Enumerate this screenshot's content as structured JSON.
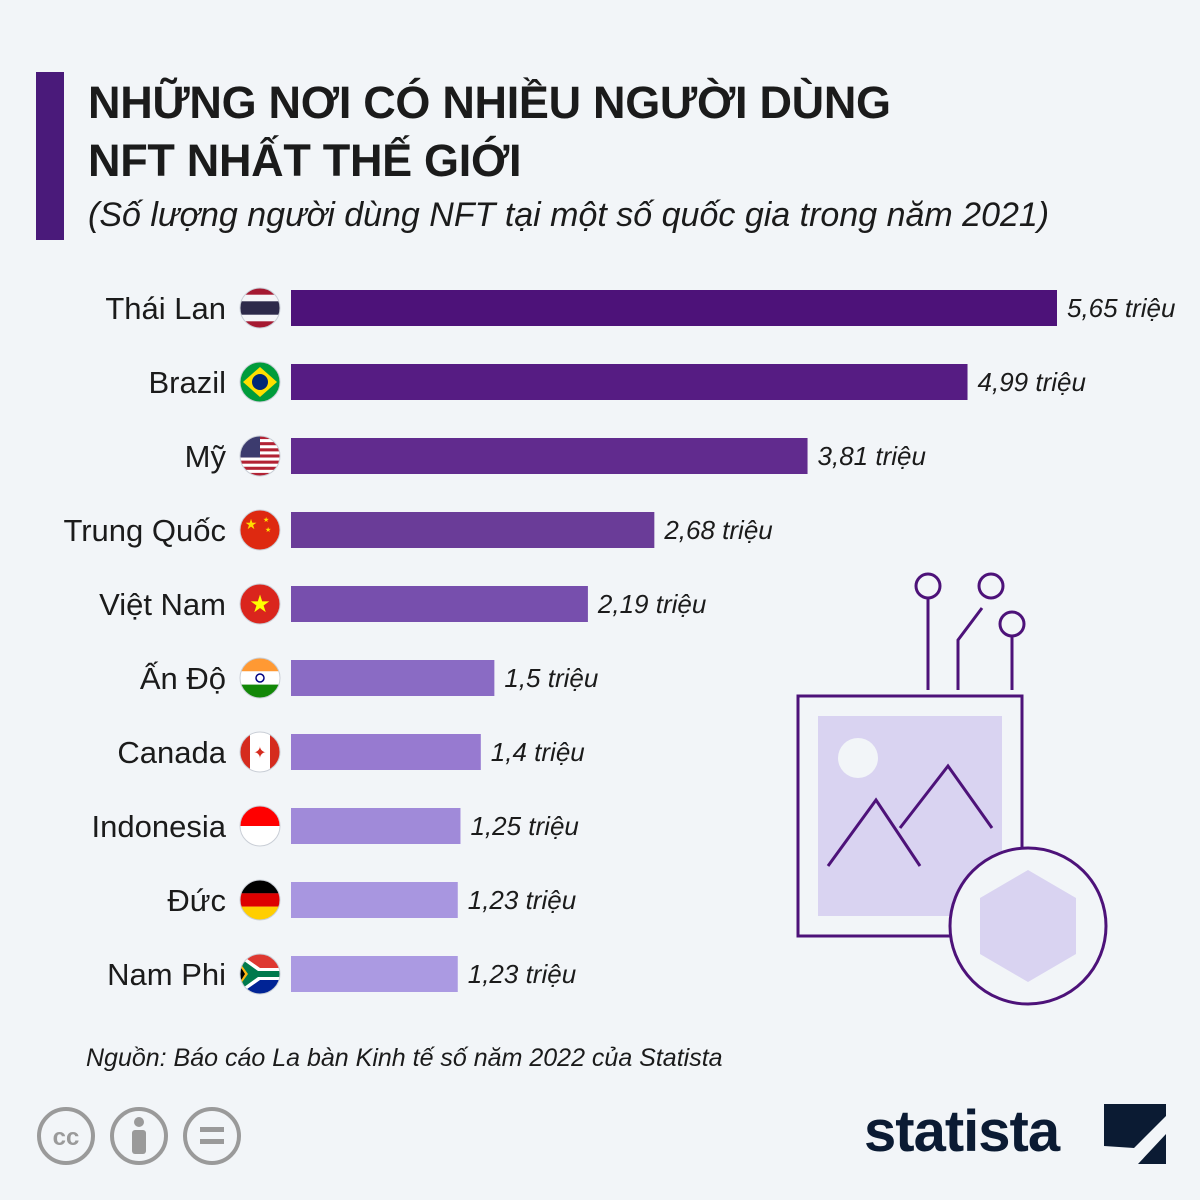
{
  "header": {
    "title_line1": "NHỮNG NƠI CÓ NHIỀU NGƯỜI DÙNG",
    "title_line2": "NFT NHẤT THẾ GIỚI",
    "subtitle": "(Số lượng người dùng NFT tại một số quốc gia trong năm 2021)"
  },
  "chart_data": {
    "type": "bar",
    "orientation": "horizontal",
    "categories": [
      "Thái Lan",
      "Brazil",
      "Mỹ",
      "Trung Quốc",
      "Việt Nam",
      "Ấn Độ",
      "Canada",
      "Indonesia",
      "Đức",
      "Nam Phi"
    ],
    "values": [
      5.65,
      4.99,
      3.81,
      2.68,
      2.19,
      1.5,
      1.4,
      1.25,
      1.23,
      1.23
    ],
    "value_labels": [
      "5,65 triệu",
      "4,99 triệu",
      "3,81 triệu",
      "2,68 triệu",
      "2,19 triệu",
      "1,5 triệu",
      "1,4 triệu",
      "1,25 triệu",
      "1,23 triệu",
      "1,23 triệu"
    ],
    "flags": [
      "thailand-flag-icon",
      "brazil-flag-icon",
      "usa-flag-icon",
      "china-flag-icon",
      "vietnam-flag-icon",
      "india-flag-icon",
      "canada-flag-icon",
      "indonesia-flag-icon",
      "germany-flag-icon",
      "south-africa-flag-icon"
    ],
    "bar_colors": [
      "#4d1279",
      "#561c83",
      "#612b8e",
      "#6a3c98",
      "#774fad",
      "#8a6bc4",
      "#977ad0",
      "#a08ad9",
      "#a896e0",
      "#ab9ae2"
    ],
    "xlim": [
      0,
      5.65
    ],
    "grid": false,
    "legend": "none"
  },
  "footer": {
    "source": "Nguồn: Báo cáo La bàn Kinh tế số năm 2022 của Statista",
    "brand": "statista",
    "license_icons": [
      "cc-icon",
      "attribution-icon",
      "no-derivatives-icon"
    ]
  }
}
